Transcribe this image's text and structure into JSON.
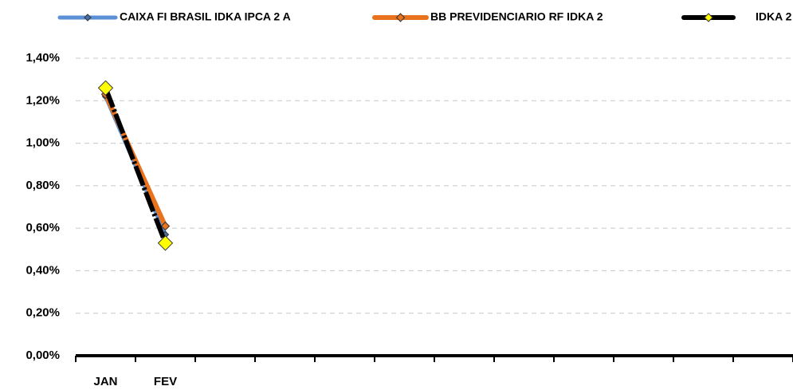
{
  "chart_data": {
    "type": "line",
    "categories": [
      "JAN",
      "FEV",
      null,
      null,
      null,
      null,
      null,
      null,
      null,
      null,
      null,
      null
    ],
    "series": [
      {
        "name": "CAIXA FI BRASIL IDKA IPCA 2 A",
        "color": "#5b8fd6",
        "marker_color": "#4a6fa8",
        "values": [
          1.22,
          0.57,
          null,
          null,
          null,
          null,
          null,
          null,
          null,
          null,
          null,
          null
        ]
      },
      {
        "name": "BB PREVIDENCIARIO RF IDKA 2",
        "color": "#e8731c",
        "marker_color": "#e8731c",
        "values": [
          1.23,
          0.61,
          null,
          null,
          null,
          null,
          null,
          null,
          null,
          null,
          null,
          null
        ]
      },
      {
        "name": "IDKA 2",
        "color": "#000000",
        "marker_color": "#ffff00",
        "values": [
          1.26,
          0.53,
          null,
          null,
          null,
          null,
          null,
          null,
          null,
          null,
          null,
          null
        ]
      }
    ],
    "ylim": [
      0,
      1.4
    ],
    "yticks": [
      {
        "value": 0,
        "label": "0,00%"
      },
      {
        "value": 0.2,
        "label": "0,20%"
      },
      {
        "value": 0.4,
        "label": "0,40%"
      },
      {
        "value": 0.6,
        "label": "0,60%"
      },
      {
        "value": 0.8,
        "label": "0,80%"
      },
      {
        "value": 1.0,
        "label": "1,00%"
      },
      {
        "value": 1.2,
        "label": "1,20%"
      },
      {
        "value": 1.4,
        "label": "1,40%"
      }
    ],
    "grid": true,
    "legend": "top"
  }
}
